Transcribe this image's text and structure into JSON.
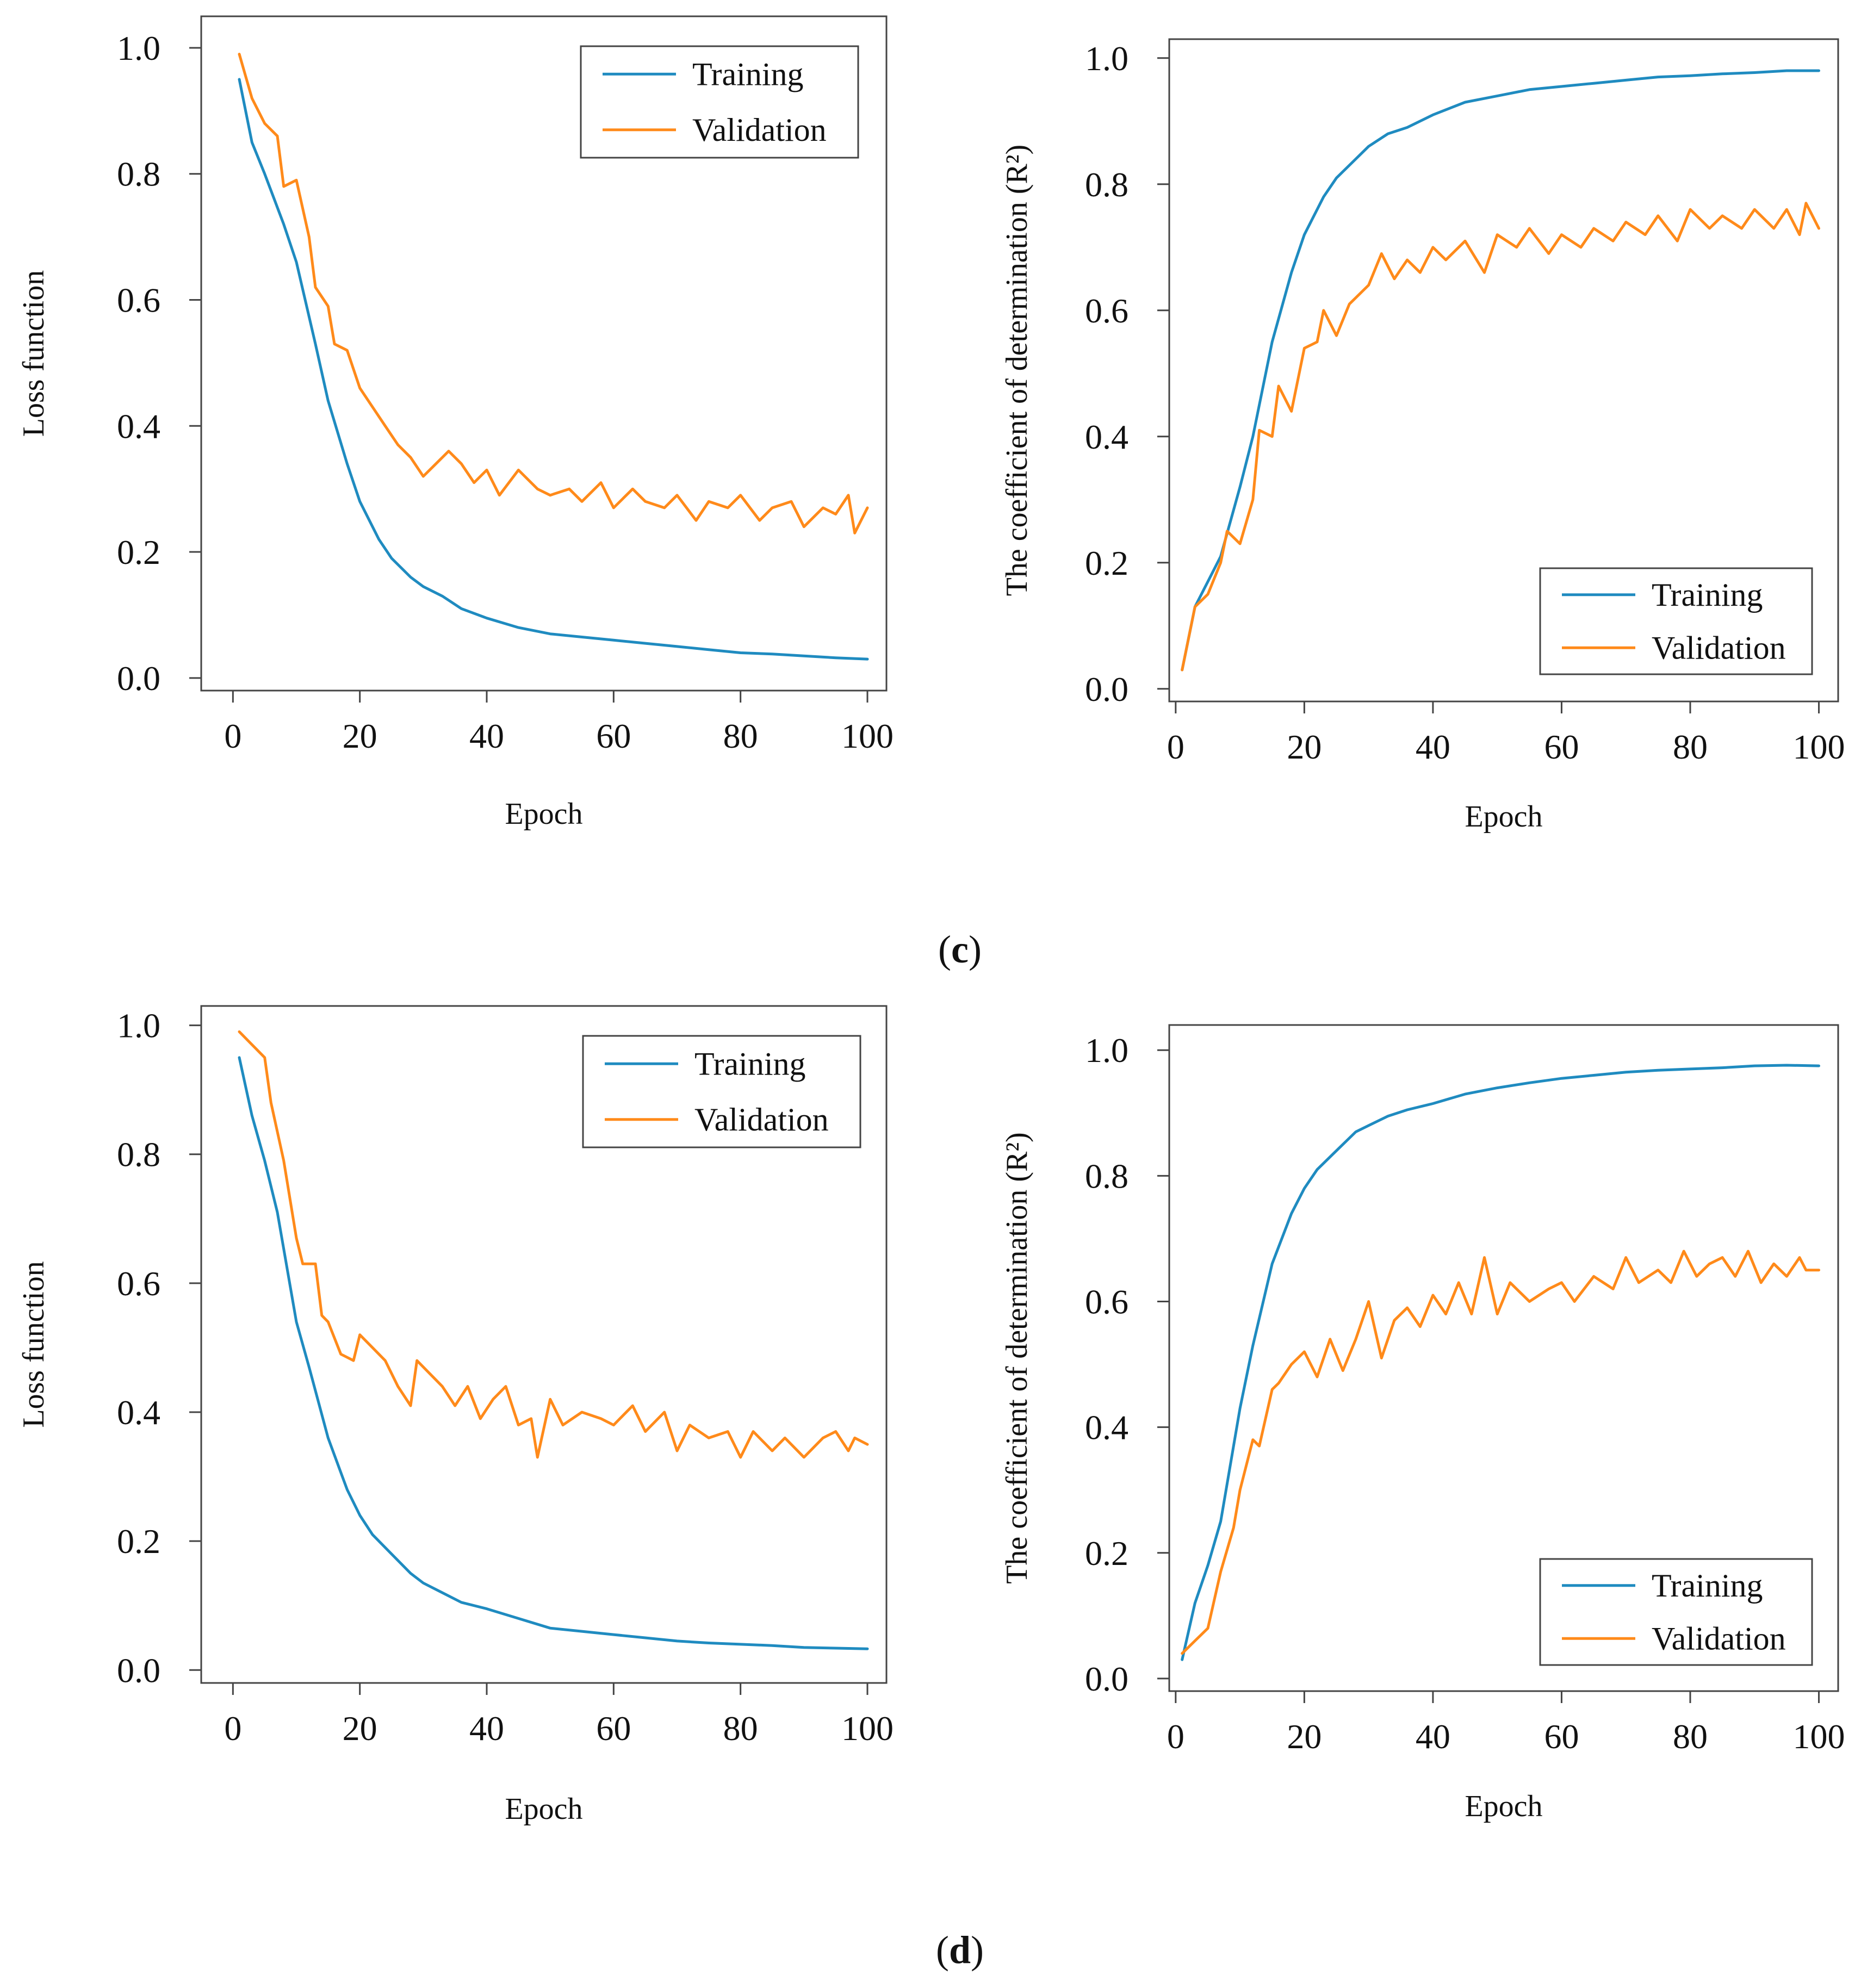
{
  "figure": {
    "panel_labels": [
      {
        "open": "(",
        "letter": "c",
        "close": ")"
      },
      {
        "open": "(",
        "letter": "d",
        "close": ")"
      }
    ]
  },
  "colors": {
    "training": "#1f8bc0",
    "validation": "#ff8a1a",
    "frame": "#444444"
  },
  "chart_data": [
    {
      "id": "c-loss",
      "type": "line",
      "title": "",
      "xlabel": "Epoch",
      "ylabel": "Loss function",
      "xlim": [
        -5,
        103
      ],
      "ylim": [
        -0.02,
        1.05
      ],
      "xticks": [
        0,
        20,
        40,
        60,
        80,
        100
      ],
      "yticks": [
        0.0,
        0.2,
        0.4,
        0.6,
        0.8,
        1.0
      ],
      "ytick_labels": [
        "0.0",
        "0.2",
        "0.4",
        "0.6",
        "0.8",
        "1.0"
      ],
      "grid": false,
      "legend": "top-right",
      "series": [
        {
          "name": "Training",
          "color_key": "training",
          "x": [
            1,
            3,
            5,
            8,
            10,
            13,
            15,
            18,
            20,
            23,
            25,
            28,
            30,
            33,
            36,
            40,
            45,
            50,
            55,
            60,
            65,
            70,
            75,
            80,
            85,
            90,
            95,
            100
          ],
          "values": [
            0.95,
            0.85,
            0.8,
            0.72,
            0.66,
            0.53,
            0.44,
            0.34,
            0.28,
            0.22,
            0.19,
            0.16,
            0.145,
            0.13,
            0.11,
            0.095,
            0.08,
            0.07,
            0.065,
            0.06,
            0.055,
            0.05,
            0.045,
            0.04,
            0.038,
            0.035,
            0.032,
            0.03
          ]
        },
        {
          "name": "Validation",
          "color_key": "validation",
          "x": [
            1,
            3,
            5,
            7,
            8,
            10,
            12,
            13,
            15,
            16,
            18,
            20,
            22,
            24,
            26,
            28,
            30,
            32,
            34,
            36,
            38,
            40,
            42,
            45,
            48,
            50,
            53,
            55,
            58,
            60,
            63,
            65,
            68,
            70,
            73,
            75,
            78,
            80,
            83,
            85,
            88,
            90,
            93,
            95,
            97,
            98,
            100
          ],
          "values": [
            0.99,
            0.92,
            0.88,
            0.86,
            0.78,
            0.79,
            0.7,
            0.62,
            0.59,
            0.53,
            0.52,
            0.46,
            0.43,
            0.4,
            0.37,
            0.35,
            0.32,
            0.34,
            0.36,
            0.34,
            0.31,
            0.33,
            0.29,
            0.33,
            0.3,
            0.29,
            0.3,
            0.28,
            0.31,
            0.27,
            0.3,
            0.28,
            0.27,
            0.29,
            0.25,
            0.28,
            0.27,
            0.29,
            0.25,
            0.27,
            0.28,
            0.24,
            0.27,
            0.26,
            0.29,
            0.23,
            0.27
          ]
        }
      ]
    },
    {
      "id": "c-r2",
      "type": "line",
      "title": "",
      "xlabel": "Epoch",
      "ylabel": "The coefficient of determination (R²)",
      "xlim": [
        -1,
        103
      ],
      "ylim": [
        -0.02,
        1.03
      ],
      "xticks": [
        0,
        20,
        40,
        60,
        80,
        100
      ],
      "yticks": [
        0.0,
        0.2,
        0.4,
        0.6,
        0.8,
        1.0
      ],
      "ytick_labels": [
        "0.0",
        "0.2",
        "0.4",
        "0.6",
        "0.8",
        "1.0"
      ],
      "grid": false,
      "legend": "bottom-right",
      "series": [
        {
          "name": "Training",
          "color_key": "training",
          "x": [
            1,
            3,
            5,
            7,
            10,
            12,
            15,
            18,
            20,
            23,
            25,
            28,
            30,
            33,
            36,
            40,
            45,
            50,
            55,
            60,
            65,
            70,
            75,
            80,
            85,
            90,
            95,
            100
          ],
          "values": [
            0.03,
            0.13,
            0.17,
            0.21,
            0.32,
            0.4,
            0.55,
            0.66,
            0.72,
            0.78,
            0.81,
            0.84,
            0.86,
            0.88,
            0.89,
            0.91,
            0.93,
            0.94,
            0.95,
            0.955,
            0.96,
            0.965,
            0.97,
            0.972,
            0.975,
            0.977,
            0.98,
            0.98
          ]
        },
        {
          "name": "Validation",
          "color_key": "validation",
          "x": [
            1,
            3,
            5,
            7,
            8,
            10,
            12,
            13,
            15,
            16,
            18,
            20,
            22,
            23,
            25,
            27,
            30,
            32,
            34,
            36,
            38,
            40,
            42,
            45,
            48,
            50,
            53,
            55,
            58,
            60,
            63,
            65,
            68,
            70,
            73,
            75,
            78,
            80,
            83,
            85,
            88,
            90,
            93,
            95,
            97,
            98,
            100
          ],
          "values": [
            0.03,
            0.13,
            0.15,
            0.2,
            0.25,
            0.23,
            0.3,
            0.41,
            0.4,
            0.48,
            0.44,
            0.54,
            0.55,
            0.6,
            0.56,
            0.61,
            0.64,
            0.69,
            0.65,
            0.68,
            0.66,
            0.7,
            0.68,
            0.71,
            0.66,
            0.72,
            0.7,
            0.73,
            0.69,
            0.72,
            0.7,
            0.73,
            0.71,
            0.74,
            0.72,
            0.75,
            0.71,
            0.76,
            0.73,
            0.75,
            0.73,
            0.76,
            0.73,
            0.76,
            0.72,
            0.77,
            0.73
          ]
        }
      ]
    },
    {
      "id": "d-loss",
      "type": "line",
      "title": "",
      "xlabel": "Epoch",
      "ylabel": "Loss function",
      "xlim": [
        -5,
        103
      ],
      "ylim": [
        -0.02,
        1.03
      ],
      "xticks": [
        0,
        20,
        40,
        60,
        80,
        100
      ],
      "yticks": [
        0.0,
        0.2,
        0.4,
        0.6,
        0.8,
        1.0
      ],
      "ytick_labels": [
        "0.0",
        "0.2",
        "0.4",
        "0.6",
        "0.8",
        "1.0"
      ],
      "grid": false,
      "legend": "top-right",
      "series": [
        {
          "name": "Training",
          "color_key": "training",
          "x": [
            1,
            3,
            5,
            7,
            10,
            12,
            15,
            18,
            20,
            22,
            25,
            28,
            30,
            33,
            36,
            40,
            45,
            50,
            55,
            60,
            65,
            70,
            75,
            80,
            85,
            90,
            95,
            100
          ],
          "values": [
            0.95,
            0.86,
            0.79,
            0.71,
            0.54,
            0.47,
            0.36,
            0.28,
            0.24,
            0.21,
            0.18,
            0.15,
            0.135,
            0.12,
            0.105,
            0.095,
            0.08,
            0.065,
            0.06,
            0.055,
            0.05,
            0.045,
            0.042,
            0.04,
            0.038,
            0.035,
            0.034,
            0.033
          ]
        },
        {
          "name": "Validation",
          "color_key": "validation",
          "x": [
            1,
            3,
            5,
            6,
            8,
            10,
            11,
            13,
            14,
            15,
            17,
            19,
            20,
            22,
            24,
            26,
            28,
            29,
            31,
            33,
            35,
            37,
            39,
            41,
            43,
            45,
            47,
            48,
            50,
            52,
            55,
            58,
            60,
            63,
            65,
            68,
            70,
            72,
            75,
            78,
            80,
            82,
            85,
            87,
            90,
            93,
            95,
            97,
            98,
            100
          ],
          "values": [
            0.99,
            0.97,
            0.95,
            0.88,
            0.79,
            0.67,
            0.63,
            0.63,
            0.55,
            0.54,
            0.49,
            0.48,
            0.52,
            0.5,
            0.48,
            0.44,
            0.41,
            0.48,
            0.46,
            0.44,
            0.41,
            0.44,
            0.39,
            0.42,
            0.44,
            0.38,
            0.39,
            0.33,
            0.42,
            0.38,
            0.4,
            0.39,
            0.38,
            0.41,
            0.37,
            0.4,
            0.34,
            0.38,
            0.36,
            0.37,
            0.33,
            0.37,
            0.34,
            0.36,
            0.33,
            0.36,
            0.37,
            0.34,
            0.36,
            0.35
          ]
        }
      ]
    },
    {
      "id": "d-r2",
      "type": "line",
      "title": "",
      "xlabel": "Epoch",
      "ylabel": "The coefficient of determination (R²)",
      "xlim": [
        -1,
        103
      ],
      "ylim": [
        -0.02,
        1.04
      ],
      "xticks": [
        0,
        20,
        40,
        60,
        80,
        100
      ],
      "yticks": [
        0.0,
        0.2,
        0.4,
        0.6,
        0.8,
        1.0
      ],
      "ytick_labels": [
        "0.0",
        "0.2",
        "0.4",
        "0.6",
        "0.8",
        "1.0"
      ],
      "grid": false,
      "legend": "bottom-right",
      "series": [
        {
          "name": "Training",
          "color_key": "training",
          "x": [
            1,
            3,
            5,
            7,
            10,
            12,
            15,
            18,
            20,
            22,
            25,
            28,
            30,
            33,
            36,
            40,
            45,
            50,
            55,
            60,
            65,
            70,
            75,
            80,
            85,
            90,
            95,
            100
          ],
          "values": [
            0.03,
            0.12,
            0.18,
            0.25,
            0.43,
            0.53,
            0.66,
            0.74,
            0.78,
            0.81,
            0.84,
            0.87,
            0.88,
            0.895,
            0.905,
            0.915,
            0.93,
            0.94,
            0.948,
            0.955,
            0.96,
            0.965,
            0.968,
            0.97,
            0.972,
            0.975,
            0.976,
            0.975
          ]
        },
        {
          "name": "Validation",
          "color_key": "validation",
          "x": [
            1,
            3,
            5,
            7,
            9,
            10,
            12,
            13,
            15,
            16,
            18,
            20,
            22,
            24,
            26,
            28,
            30,
            32,
            34,
            36,
            38,
            40,
            42,
            44,
            46,
            48,
            50,
            52,
            55,
            58,
            60,
            62,
            65,
            68,
            70,
            72,
            75,
            77,
            79,
            81,
            83,
            85,
            87,
            89,
            91,
            93,
            95,
            97,
            98,
            100
          ],
          "values": [
            0.04,
            0.06,
            0.08,
            0.17,
            0.24,
            0.3,
            0.38,
            0.37,
            0.46,
            0.47,
            0.5,
            0.52,
            0.48,
            0.54,
            0.49,
            0.54,
            0.6,
            0.51,
            0.57,
            0.59,
            0.56,
            0.61,
            0.58,
            0.63,
            0.58,
            0.67,
            0.58,
            0.63,
            0.6,
            0.62,
            0.63,
            0.6,
            0.64,
            0.62,
            0.67,
            0.63,
            0.65,
            0.63,
            0.68,
            0.64,
            0.66,
            0.67,
            0.64,
            0.68,
            0.63,
            0.66,
            0.64,
            0.67,
            0.65,
            0.65
          ]
        }
      ]
    }
  ]
}
